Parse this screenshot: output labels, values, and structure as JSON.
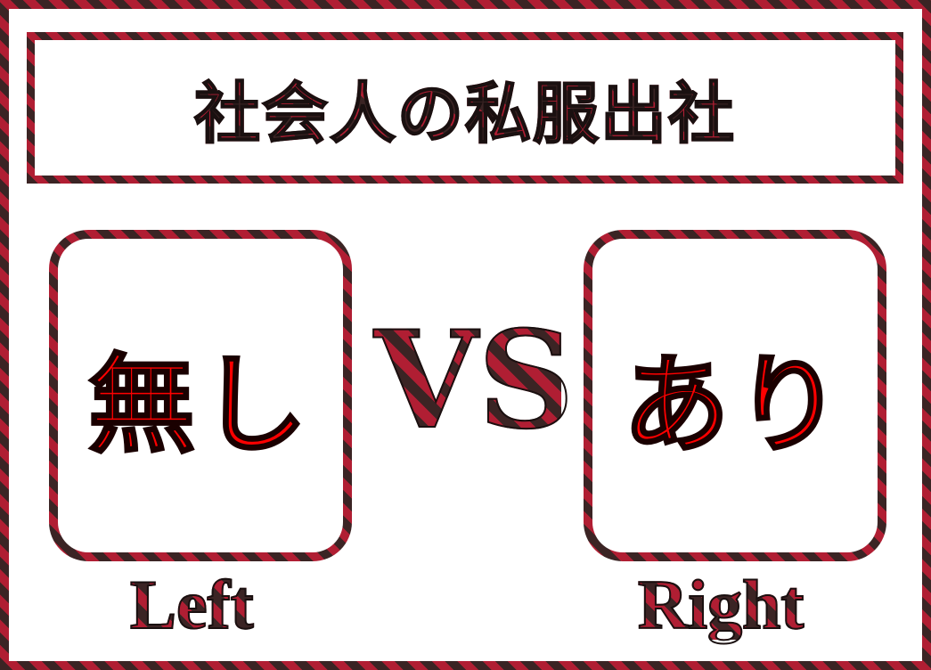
{
  "title": "社会人の私服出社",
  "left_card": {
    "text": "無し",
    "caption": "Left"
  },
  "vs_label": "VS",
  "right_card": {
    "text": "あり",
    "caption": "Right"
  },
  "colors": {
    "plaid_dark": "#3b2424",
    "plaid_red": "#b01e33",
    "answer_red": "#ff0000"
  }
}
